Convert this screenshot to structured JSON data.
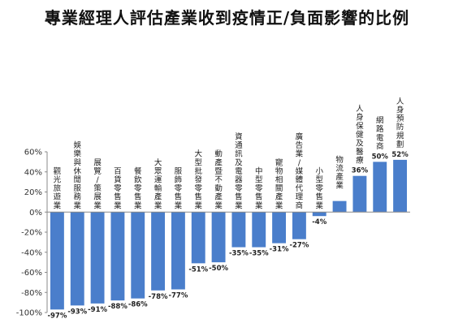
{
  "chart_data": {
    "type": "bar",
    "title": "專業經理人評估產業收到疫情正/負面影響的比例",
    "categories": [
      "觀光旅遊業",
      "娛樂與休閒服務業",
      "展覽/策展業",
      "百貨零售業",
      "餐飲零售業",
      "大眾運輸產業",
      "服飾零售業",
      "大型批發零售業",
      "動產暨不動產業",
      "資通訊及電器零售業",
      "中型零售業",
      "寵物相關產業",
      "廣告業/媒體代理商",
      "小型零售業",
      "物流產業",
      "人身保健及醫療",
      "網路電商",
      "人身預防規劃"
    ],
    "values": [
      -97,
      -93,
      -91,
      -88,
      -86,
      -78,
      -77,
      -51,
      -50,
      -35,
      -35,
      -31,
      -27,
      -4,
      11,
      36,
      50,
      52
    ],
    "data_labels": [
      "-97%",
      "-93%",
      "-91%",
      "-88%",
      "-86%",
      "-78%",
      "-77%",
      "-51%",
      "-50%",
      "-35%",
      "-35%",
      "-31%",
      "-27%",
      "-4%",
      "",
      "36%",
      "50%",
      "52%"
    ],
    "ylim": [
      -100,
      60
    ],
    "yticks": [
      "60%",
      "40%",
      "20%",
      "0%",
      "-20%",
      "-40%",
      "-60%",
      "-80%",
      "-100%"
    ],
    "xlabel": "",
    "ylabel": "",
    "grid": false,
    "bar_color": "#4a7ecb"
  }
}
